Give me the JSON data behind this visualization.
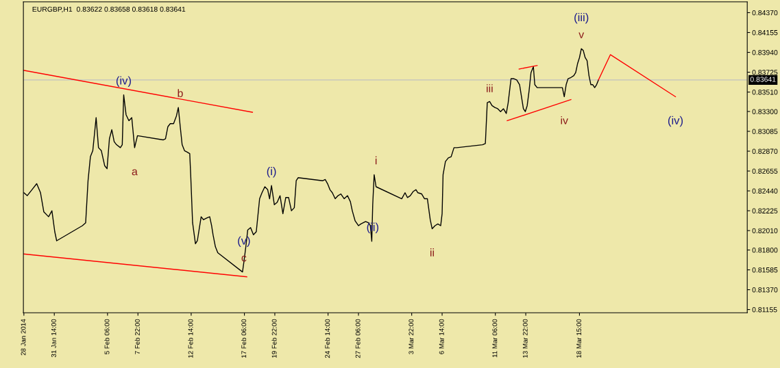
{
  "chart_data": {
    "type": "line",
    "title": "EURGBP,H1  0.83622 0.83658 0.83618 0.83641",
    "xlim": [
      "2014-01-28T21:00",
      "2014-04-02T08:00"
    ],
    "ylim": [
      0.8112,
      0.84487
    ],
    "xticks": [
      {
        "value": "2014-01-28T22:00",
        "label": "28 Jan 2014"
      },
      {
        "value": "2014-01-31T14:00",
        "label": "31 Jan 14:00"
      },
      {
        "value": "2014-02-05T06:00",
        "label": "5 Feb 06:00"
      },
      {
        "value": "2014-02-07T22:00",
        "label": "7 Feb 22:00"
      },
      {
        "value": "2014-02-12T14:00",
        "label": "12 Feb 14:00"
      },
      {
        "value": "2014-02-17T06:00",
        "label": "17 Feb 06:00"
      },
      {
        "value": "2014-02-19T22:00",
        "label": "19 Feb 22:00"
      },
      {
        "value": "2014-02-24T14:00",
        "label": "24 Feb 14:00"
      },
      {
        "value": "2014-02-27T06:00",
        "label": "27 Feb 06:00"
      },
      {
        "value": "2014-03-03T22:00",
        "label": "3 Mar 22:00"
      },
      {
        "value": "2014-03-06T14:00",
        "label": "6 Mar 14:00"
      },
      {
        "value": "2014-03-11T06:00",
        "label": "11 Mar 06:00"
      },
      {
        "value": "2014-03-13T22:00",
        "label": "13 Mar 22:00"
      },
      {
        "value": "2014-03-18T15:00",
        "label": "18 Mar 15:00"
      }
    ],
    "yticks": [
      {
        "value": 0.8437,
        "label": "0.84370"
      },
      {
        "value": 0.84155,
        "label": "0.84155"
      },
      {
        "value": 0.8394,
        "label": "0.83940"
      },
      {
        "value": 0.83725,
        "label": "0.83725"
      },
      {
        "value": 0.8351,
        "label": "0.83510"
      },
      {
        "value": 0.833,
        "label": "0.83300"
      },
      {
        "value": 0.83085,
        "label": "0.83085"
      },
      {
        "value": 0.8287,
        "label": "0.82870"
      },
      {
        "value": 0.82655,
        "label": "0.82655"
      },
      {
        "value": 0.8244,
        "label": "0.82440"
      },
      {
        "value": 0.82225,
        "label": "0.82225"
      },
      {
        "value": 0.8201,
        "label": "0.82010"
      },
      {
        "value": 0.818,
        "label": "0.81800"
      },
      {
        "value": 0.81585,
        "label": "0.81585"
      },
      {
        "value": 0.8137,
        "label": "0.81370"
      },
      {
        "value": 0.81155,
        "label": "0.81155"
      }
    ],
    "grid": false,
    "legend": false,
    "marker": "none",
    "line_style": "solid",
    "ref_lines": [
      {
        "axis": "y",
        "value": 0.83641,
        "label": "0.83641",
        "color": "#c0c0c0"
      }
    ],
    "series": [
      {
        "color": "#000000",
        "x": [
          "2014-01-28T22:00",
          "2014-01-29T05:00",
          "2014-01-29T15:00",
          "2014-01-30T01:00",
          "2014-01-30T09:00",
          "2014-01-30T16:00",
          "2014-01-31T02:00",
          "2014-01-31T09:00",
          "2014-01-31T15:00",
          "2014-01-31T19:00",
          "2014-02-03T01:00",
          "2014-02-03T08:00",
          "2014-02-03T13:00",
          "2014-02-03T18:00",
          "2014-02-03T23:00",
          "2014-02-04T06:00",
          "2014-02-04T11:00",
          "2014-02-04T17:00",
          "2014-02-05T00:00",
          "2014-02-05T05:00",
          "2014-02-05T10:00",
          "2014-02-05T15:00",
          "2014-02-05T20:00",
          "2014-02-06T01:00",
          "2014-02-06T09:00",
          "2014-02-06T13:00",
          "2014-02-06T16:00",
          "2014-02-06T21:00",
          "2014-02-07T03:00",
          "2014-02-07T09:00",
          "2014-02-07T15:00",
          "2014-02-07T21:00",
          "2014-02-10T03:00",
          "2014-02-10T08:00",
          "2014-02-10T13:00",
          "2014-02-10T18:00",
          "2014-02-11T01:00",
          "2014-02-11T07:00",
          "2014-02-11T11:00",
          "2014-02-11T15:00",
          "2014-02-11T19:00",
          "2014-02-12T00:00",
          "2014-02-12T05:00",
          "2014-02-12T11:00",
          "2014-02-12T13:00",
          "2014-02-12T17:00",
          "2014-02-12T23:00",
          "2014-02-13T03:00",
          "2014-02-13T07:00",
          "2014-02-13T11:00",
          "2014-02-13T16:00",
          "2014-02-13T23:00",
          "2014-02-14T05:00",
          "2014-02-14T09:00",
          "2014-02-14T12:00",
          "2014-02-14T17:00",
          "2014-02-14T22:00",
          "2014-02-17T02:00",
          "2014-02-17T05:00",
          "2014-02-17T09:00",
          "2014-02-17T13:00",
          "2014-02-17T19:00",
          "2014-02-18T01:00",
          "2014-02-18T07:00",
          "2014-02-18T14:00",
          "2014-02-18T19:00",
          "2014-02-19T01:00",
          "2014-02-19T07:00",
          "2014-02-19T11:00",
          "2014-02-19T15:00",
          "2014-02-19T21:00",
          "2014-02-20T03:00",
          "2014-02-20T09:00",
          "2014-02-20T15:00",
          "2014-02-20T21:00",
          "2014-02-21T03:00",
          "2014-02-21T09:00",
          "2014-02-21T15:00",
          "2014-02-21T19:00",
          "2014-02-21T23:00",
          "2014-02-24T03:00",
          "2014-02-24T08:00",
          "2014-02-24T13:00",
          "2014-02-24T18:00",
          "2014-02-24T23:00",
          "2014-02-25T05:00",
          "2014-02-25T11:00",
          "2014-02-25T17:00",
          "2014-02-26T00:00",
          "2014-02-26T07:00",
          "2014-02-26T13:00",
          "2014-02-26T17:00",
          "2014-02-26T23:00",
          "2014-02-27T06:00",
          "2014-02-27T11:00",
          "2014-02-27T16:00",
          "2014-02-27T21:00",
          "2014-02-28T03:00",
          "2014-02-28T07:00",
          "2014-02-28T10:00",
          "2014-02-28T12:00",
          "2014-02-28T15:00",
          "2014-02-28T19:00",
          "2014-03-03T01:00",
          "2014-03-03T08:00",
          "2014-03-03T13:00",
          "2014-03-03T19:00",
          "2014-03-04T01:00",
          "2014-03-04T07:00",
          "2014-03-04T11:00",
          "2014-03-04T19:00",
          "2014-03-05T01:00",
          "2014-03-05T07:00",
          "2014-03-05T13:00",
          "2014-03-05T17:00",
          "2014-03-05T23:00",
          "2014-03-06T05:00",
          "2014-03-06T11:00",
          "2014-03-06T14:00",
          "2014-03-06T16:00",
          "2014-03-06T21:00",
          "2014-03-07T03:00",
          "2014-03-07T09:00",
          "2014-03-07T15:00",
          "2014-03-07T21:00",
          "2014-03-10T03:00",
          "2014-03-10T09:00",
          "2014-03-10T13:00",
          "2014-03-10T18:00",
          "2014-03-10T23:00",
          "2014-03-11T05:00",
          "2014-03-11T11:00",
          "2014-03-11T17:00",
          "2014-03-11T23:00",
          "2014-03-12T05:00",
          "2014-03-12T09:00",
          "2014-03-12T15:00",
          "2014-03-12T21:00",
          "2014-03-13T03:00",
          "2014-03-13T09:00",
          "2014-03-13T13:00",
          "2014-03-13T17:00",
          "2014-03-13T21:00",
          "2014-03-14T01:00",
          "2014-03-14T05:00",
          "2014-03-14T09:00",
          "2014-03-14T14:00",
          "2014-03-14T17:00",
          "2014-03-14T22:00",
          "2014-03-17T03:00",
          "2014-03-17T07:00",
          "2014-03-17T11:00",
          "2014-03-17T15:00",
          "2014-03-17T21:00",
          "2014-03-18T03:00",
          "2014-03-18T07:00",
          "2014-03-18T11:00",
          "2014-03-18T15:00",
          "2014-03-18T19:00",
          "2014-03-18T23:00",
          "2014-03-19T03:00",
          "2014-03-19T07:00",
          "2014-03-19T11:00",
          "2014-03-19T15:00",
          "2014-03-19T19:00",
          "2014-03-19T23:00",
          "2014-03-20T03:00",
          "2014-03-20T07:00"
        ],
        "values": [
          0.8242,
          0.82388,
          0.82453,
          0.82518,
          0.8242,
          0.82212,
          0.8216,
          0.82225,
          0.81998,
          0.819,
          0.82063,
          0.82095,
          0.8255,
          0.8281,
          0.82875,
          0.83233,
          0.82908,
          0.82875,
          0.82713,
          0.8268,
          0.83005,
          0.83103,
          0.82973,
          0.8294,
          0.82908,
          0.8294,
          0.8348,
          0.83265,
          0.832,
          0.83233,
          0.82908,
          0.83038,
          0.82992,
          0.83005,
          0.83135,
          0.83168,
          0.83168,
          0.83252,
          0.83343,
          0.83135,
          0.8294,
          0.82875,
          0.82862,
          0.82843,
          0.82615,
          0.82095,
          0.81868,
          0.819,
          0.8203,
          0.8216,
          0.82128,
          0.82147,
          0.8216,
          0.82063,
          0.81965,
          0.81835,
          0.8177,
          0.81562,
          0.81673,
          0.81835,
          0.82017,
          0.82043,
          0.81965,
          0.81998,
          0.82355,
          0.8242,
          0.82485,
          0.82453,
          0.82355,
          0.82498,
          0.8229,
          0.82316,
          0.82388,
          0.82193,
          0.82368,
          0.82368,
          0.82225,
          0.82258,
          0.8255,
          0.82583,
          0.8255,
          0.82563,
          0.82518,
          0.82453,
          0.8242,
          0.82355,
          0.82388,
          0.82407,
          0.82355,
          0.82388,
          0.82323,
          0.82225,
          0.82115,
          0.82063,
          0.82082,
          0.82095,
          0.82108,
          0.82095,
          0.82063,
          0.81894,
          0.8229,
          0.82615,
          0.82485,
          0.82355,
          0.8242,
          0.82368,
          0.82388,
          0.82433,
          0.82453,
          0.8242,
          0.82407,
          0.82355,
          0.82355,
          0.82128,
          0.8203,
          0.82063,
          0.82082,
          0.82063,
          0.82193,
          0.82615,
          0.82758,
          0.82797,
          0.8281,
          0.82908,
          0.82908,
          0.8294,
          0.82953,
          0.83395,
          0.83408,
          0.83363,
          0.83343,
          0.8333,
          0.83298,
          0.8333,
          0.83278,
          0.83395,
          0.83655,
          0.83655,
          0.83642,
          0.8359,
          0.8346,
          0.8333,
          0.83298,
          0.83363,
          0.83525,
          0.8372,
          0.83785,
          0.8359,
          0.83558,
          0.83558,
          0.8346,
          0.8359,
          0.83655,
          0.83668,
          0.83688,
          0.8372,
          0.83818,
          0.83883,
          0.8398,
          0.8396,
          0.83883,
          0.8385,
          0.83688,
          0.8359,
          0.8359,
          0.83558,
          0.8359,
          0.83641
        ]
      },
      {
        "color": "#ff0000",
        "x": [
          "2014-01-28T21:00",
          "2014-02-17T23:00"
        ],
        "values": [
          0.83746,
          0.83291
        ]
      },
      {
        "color": "#ff0000",
        "x": [
          "2014-01-28T21:00",
          "2014-02-17T11:00"
        ],
        "values": [
          0.81757,
          0.8151
        ]
      },
      {
        "color": "#ff0000",
        "x": [
          "2014-03-13T08:00",
          "2014-03-14T22:00"
        ],
        "values": [
          0.83759,
          0.83798
        ]
      },
      {
        "color": "#ff0000",
        "x": [
          "2014-03-12T07:00",
          "2014-03-17T21:00"
        ],
        "values": [
          0.832,
          0.83428
        ]
      },
      {
        "color": "#ff0000",
        "x": [
          "2014-03-20T07:00",
          "2014-03-21T08:00",
          "2014-03-27T01:00"
        ],
        "values": [
          0.83641,
          0.83915,
          0.8346
        ]
      }
    ],
    "annotations": [
      {
        "text": "(iv)",
        "x": "2014-02-06T16:00",
        "y": 0.8348
      },
      {
        "text": "b",
        "x": "2014-02-11T15:00",
        "y": 0.83343
      },
      {
        "text": "a",
        "x": "2014-02-07T15:00",
        "y": 0.82908
      },
      {
        "text": "c",
        "x": "2014-02-17T05:00",
        "y": 0.81562
      },
      {
        "text": "(v)",
        "x": "2014-02-17T05:00",
        "y": 0.81562
      },
      {
        "text": "(i)",
        "x": "2014-02-19T15:00",
        "y": 0.82498
      },
      {
        "text": "i",
        "x": "2014-02-28T19:00",
        "y": 0.82615
      },
      {
        "text": "(ii)",
        "x": "2014-02-28T12:00",
        "y": 0.81894
      },
      {
        "text": "ii",
        "x": "2014-03-05T17:00",
        "y": 0.8203
      },
      {
        "text": "iii",
        "x": "2014-03-10T18:00",
        "y": 0.83395
      },
      {
        "text": "iv",
        "x": "2014-03-17T07:00",
        "y": 0.8346
      },
      {
        "text": "v",
        "x": "2014-03-18T19:00",
        "y": 0.8398
      },
      {
        "text": "(iii)",
        "x": "2014-03-18T19:00",
        "y": 0.8398
      },
      {
        "text": "(iv)",
        "x": "2014-03-27T01:00",
        "y": 0.8346
      }
    ]
  }
}
